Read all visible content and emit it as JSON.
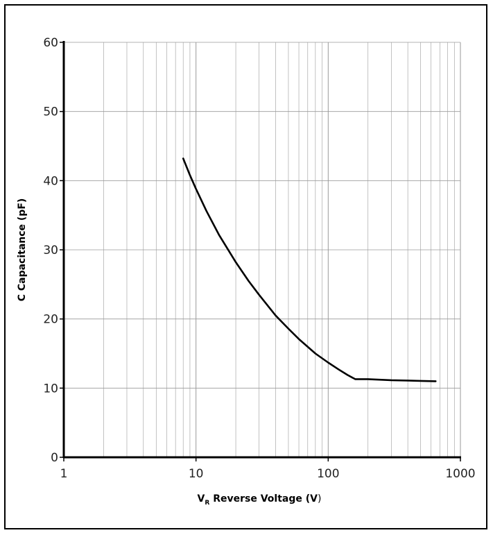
{
  "chart_data": {
    "type": "line",
    "xscale": "log",
    "xlim": [
      1,
      1000
    ],
    "ylim": [
      0,
      60
    ],
    "xticks": [
      "1",
      "10",
      "100",
      "1000"
    ],
    "yticks": [
      "0",
      "10",
      "20",
      "30",
      "40",
      "50",
      "60"
    ],
    "ylabel": "C Capacitance (pF)",
    "xlabel_main": "V",
    "xlabel_sub": "R",
    "xlabel_rest": " Reverse Voltage (",
    "xlabel_unit": "V",
    "xlabel_close": ")",
    "grid": true,
    "series": [
      {
        "x": [
          8,
          9,
          10,
          12,
          15,
          20,
          25,
          30,
          40,
          50,
          60,
          80,
          100,
          120,
          140,
          160,
          200,
          300,
          400,
          500,
          650
        ],
        "y": [
          43.2,
          40.8,
          38.8,
          35.6,
          32.1,
          28.2,
          25.5,
          23.5,
          20.5,
          18.6,
          17.1,
          15.0,
          13.7,
          12.7,
          11.9,
          11.3,
          11.3,
          11.15,
          11.1,
          11.05,
          11.0
        ]
      }
    ]
  },
  "style": {
    "line_color": "#000000",
    "grid_color": "#9a9a9a",
    "axis_color": "#000000"
  }
}
